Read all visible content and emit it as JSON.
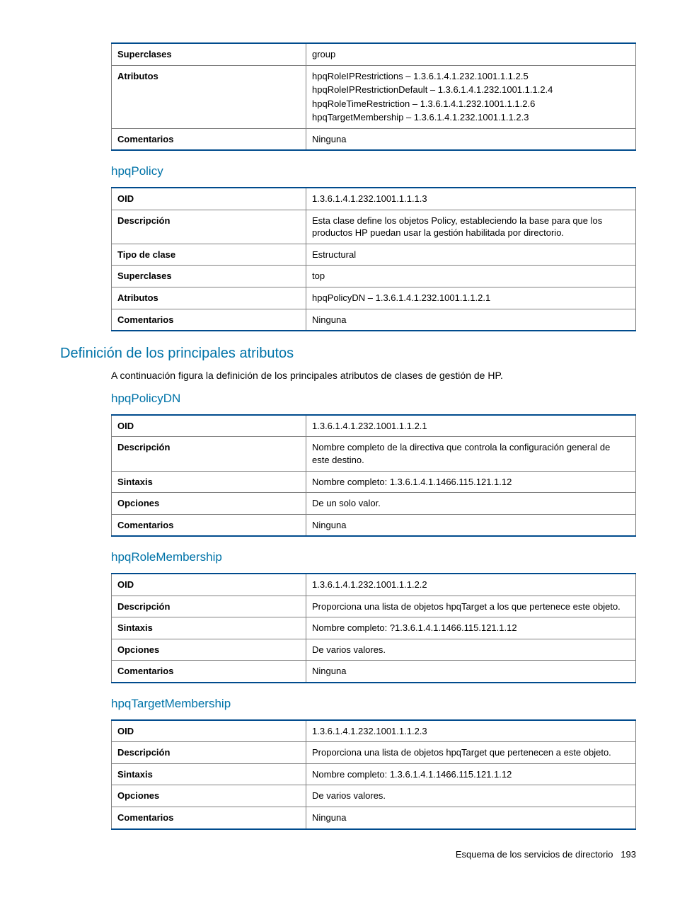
{
  "tables": [
    {
      "heading": null,
      "rows": [
        {
          "label": "Superclases",
          "value": "group"
        },
        {
          "label": "Atributos",
          "value": [
            "hpqRoleIPRestrictions – 1.3.6.1.4.1.232.1001.1.1.2.5",
            "hpqRoleIPRestrictionDefault – 1.3.6.1.4.1.232.1001.1.1.2.4",
            "hpqRoleTimeRestriction – 1.3.6.1.4.1.232.1001.1.1.2.6",
            "hpqTargetMembership – 1.3.6.1.4.1.232.1001.1.1.2.3"
          ]
        },
        {
          "label": "Comentarios",
          "value": "Ninguna"
        }
      ]
    },
    {
      "heading": "hpqPolicy",
      "rows": [
        {
          "label": "OID",
          "value": "1.3.6.1.4.1.232.1001.1.1.1.3"
        },
        {
          "label": "Descripción",
          "value": "Esta clase define los objetos Policy, estableciendo la base para que los productos HP puedan usar la gestión habilitada por directorio."
        },
        {
          "label": "Tipo de clase",
          "value": "Estructural"
        },
        {
          "label": "Superclases",
          "value": "top"
        },
        {
          "label": "Atributos",
          "value": "hpqPolicyDN – 1.3.6.1.4.1.232.1001.1.1.2.1"
        },
        {
          "label": "Comentarios",
          "value": "Ninguna"
        }
      ]
    }
  ],
  "section": {
    "title": "Definición de los principales atributos",
    "intro": "A continuación figura la definición de los principales atributos de clases de gestión de HP."
  },
  "attrTables": [
    {
      "heading": "hpqPolicyDN",
      "rows": [
        {
          "label": "OID",
          "value": "1.3.6.1.4.1.232.1001.1.1.2.1"
        },
        {
          "label": "Descripción",
          "value": "Nombre completo de la directiva que controla la configuración general de este destino."
        },
        {
          "label": "Sintaxis",
          "value": "Nombre completo: 1.3.6.1.4.1.1466.115.121.1.12"
        },
        {
          "label": "Opciones",
          "value": "De un solo valor."
        },
        {
          "label": "Comentarios",
          "value": "Ninguna"
        }
      ]
    },
    {
      "heading": "hpqRoleMembership",
      "rows": [
        {
          "label": "OID",
          "value": "1.3.6.1.4.1.232.1001.1.1.2.2"
        },
        {
          "label": "Descripción",
          "value": "Proporciona una lista de objetos hpqTarget a los que pertenece este objeto."
        },
        {
          "label": "Sintaxis",
          "value": "Nombre completo: ?1.3.6.1.4.1.1466.115.121.1.12"
        },
        {
          "label": "Opciones",
          "value": "De varios valores."
        },
        {
          "label": "Comentarios",
          "value": "Ninguna"
        }
      ]
    },
    {
      "heading": "hpqTargetMembership",
      "rows": [
        {
          "label": "OID",
          "value": "1.3.6.1.4.1.232.1001.1.1.2.3"
        },
        {
          "label": "Descripción",
          "value": "Proporciona una lista de objetos hpqTarget que pertenecen a este objeto."
        },
        {
          "label": "Sintaxis",
          "value": "Nombre completo: 1.3.6.1.4.1.1466.115.121.1.12"
        },
        {
          "label": "Opciones",
          "value": "De varios valores."
        },
        {
          "label": "Comentarios",
          "value": "Ninguna"
        }
      ]
    }
  ],
  "footer": {
    "text": "Esquema de los servicios de directorio",
    "page": "193"
  }
}
